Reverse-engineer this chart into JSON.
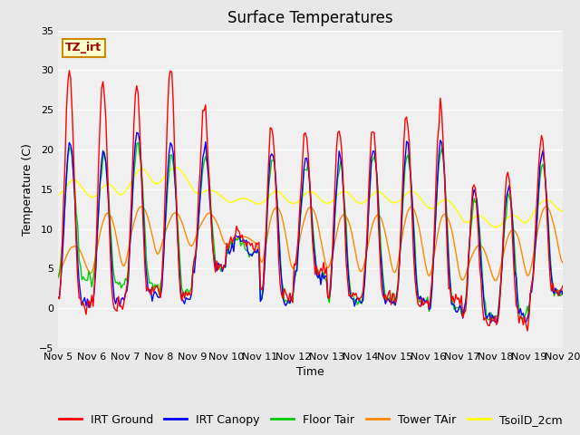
{
  "title": "Surface Temperatures",
  "xlabel": "Time",
  "ylabel": "Temperature (C)",
  "ylim": [
    -5,
    35
  ],
  "yticks": [
    -5,
    0,
    5,
    10,
    15,
    20,
    25,
    30,
    35
  ],
  "xtick_labels": [
    "Nov 5",
    "Nov 6",
    "Nov 7",
    "Nov 8",
    "Nov 9",
    "Nov 10",
    "Nov 11",
    "Nov 12",
    "Nov 13",
    "Nov 14",
    "Nov 15",
    "Nov 16",
    "Nov 17",
    "Nov 18",
    "Nov 19",
    "Nov 20"
  ],
  "series_colors": {
    "IRT Ground": "#ff0000",
    "IRT Canopy": "#0000ff",
    "Floor Tair": "#00cc00",
    "Tower TAir": "#ff8800",
    "TsoilD_2cm": "#ffff00"
  },
  "annotation_text": "TZ_irt",
  "annotation_bbox_facecolor": "#ffffcc",
  "annotation_bbox_edgecolor": "#cc8800",
  "figure_bg_color": "#e8e8e8",
  "plot_bg_color": "#e8e8e8",
  "plot_inner_bg_color": "#f0f0f0",
  "title_fontsize": 12,
  "axis_label_fontsize": 9,
  "tick_fontsize": 8,
  "legend_fontsize": 9
}
